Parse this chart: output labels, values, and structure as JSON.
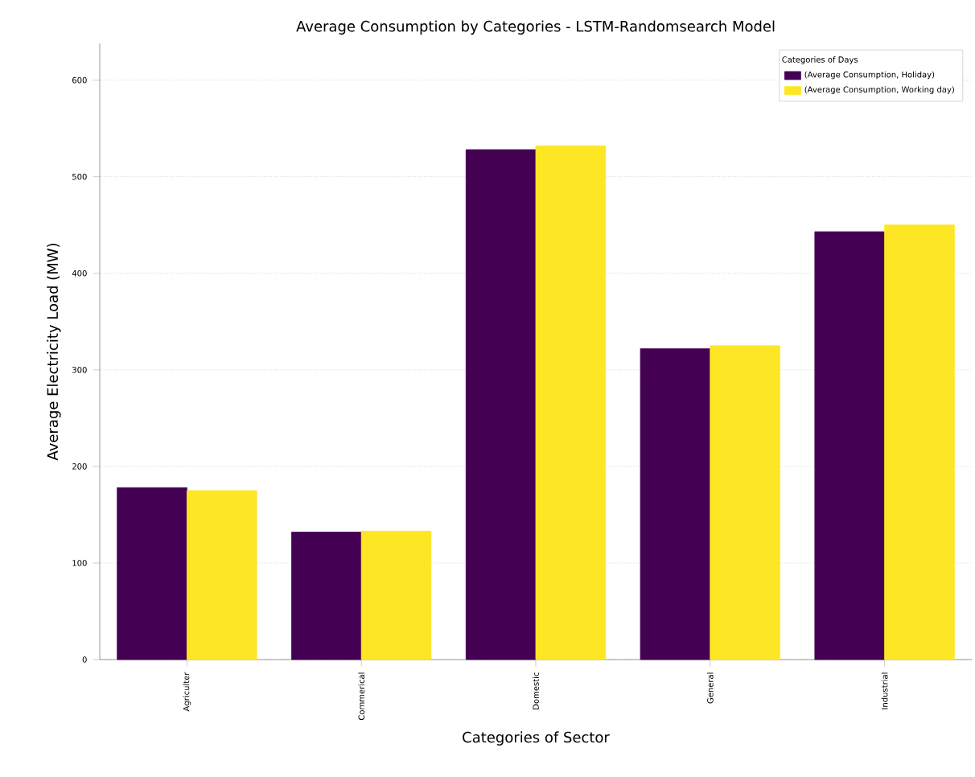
{
  "chart_data": {
    "type": "bar",
    "title": "Average  Consumption by Categories - LSTM-Randomsearch Model",
    "xlabel": "Categories of Sector",
    "ylabel": "Average Electricity Load (MW)",
    "legend_title": "Categories of Days",
    "categories": [
      "Agriculter",
      "Commerical",
      "Domestic",
      "General",
      "Industrial"
    ],
    "series": [
      {
        "name": "(Average Consumption, Holiday)",
        "color": "#440154",
        "values": [
          178,
          132,
          528,
          322,
          443
        ]
      },
      {
        "name": "(Average Consumption, Working day)",
        "color": "#fde725",
        "values": [
          175,
          133,
          532,
          325,
          450
        ]
      }
    ],
    "ylim": [
      0,
      638
    ],
    "yticks": [
      0,
      100,
      200,
      300,
      400,
      500,
      600
    ],
    "grid": "y",
    "legend": "top right"
  }
}
